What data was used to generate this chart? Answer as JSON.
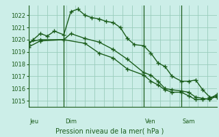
{
  "bg_color": "#cceee8",
  "grid_color": "#99ccbb",
  "line_color": "#1a5c1a",
  "marker": "+",
  "xlabel_text": "Pression niveau de la mer( hPa )",
  "ylim": [
    1014.5,
    1022.8
  ],
  "yticks": [
    1015,
    1016,
    1017,
    1018,
    1019,
    1020,
    1021,
    1022
  ],
  "xlim": [
    0,
    40
  ],
  "day_labels": [
    "Jeu",
    "Dim",
    "Ven",
    "Sam"
  ],
  "day_positions": [
    1.0,
    8.5,
    25.0,
    33.0
  ],
  "vline_positions": [
    7.5,
    24.5,
    32.5
  ],
  "series1_x": [
    0.0,
    1.0,
    2.5,
    4.0,
    5.5,
    7.5,
    9.0,
    10.5,
    12.0,
    13.5,
    15.0,
    16.5,
    18.0,
    19.5,
    21.0,
    22.5,
    24.5,
    26.0,
    27.5,
    29.0,
    30.5,
    32.5,
    34.0,
    35.5,
    37.0,
    38.5,
    40.0
  ],
  "series1_y": [
    1019.6,
    1020.0,
    1020.5,
    1020.3,
    1020.7,
    1020.4,
    1022.3,
    1022.5,
    1022.0,
    1021.8,
    1021.7,
    1021.5,
    1021.4,
    1021.0,
    1020.1,
    1019.6,
    1019.5,
    1018.9,
    1018.1,
    1017.8,
    1017.0,
    1016.6,
    1016.6,
    1016.7,
    1015.9,
    1015.3,
    1015.3
  ],
  "series2_x": [
    0.0,
    2.5,
    7.5,
    9.0,
    12.0,
    15.0,
    18.0,
    21.0,
    24.5,
    26.0,
    27.5,
    29.0,
    30.5,
    32.5,
    34.0,
    35.5,
    37.0,
    38.5,
    40.0
  ],
  "series2_y": [
    1019.8,
    1020.0,
    1020.0,
    1020.5,
    1020.1,
    1019.8,
    1019.2,
    1018.4,
    1017.3,
    1017.1,
    1016.6,
    1016.0,
    1015.9,
    1015.8,
    1015.7,
    1015.3,
    1015.2,
    1015.1,
    1015.4
  ],
  "series3_x": [
    0.0,
    2.5,
    7.5,
    12.0,
    15.0,
    18.0,
    21.0,
    24.5,
    26.0,
    27.5,
    29.0,
    30.5,
    32.5,
    34.0,
    35.5,
    37.0,
    38.5,
    40.0
  ],
  "series3_y": [
    1019.4,
    1019.9,
    1020.0,
    1019.7,
    1018.9,
    1018.5,
    1017.6,
    1017.1,
    1016.6,
    1016.3,
    1015.9,
    1015.7,
    1015.7,
    1015.4,
    1015.1,
    1015.1,
    1015.2,
    1015.5
  ]
}
